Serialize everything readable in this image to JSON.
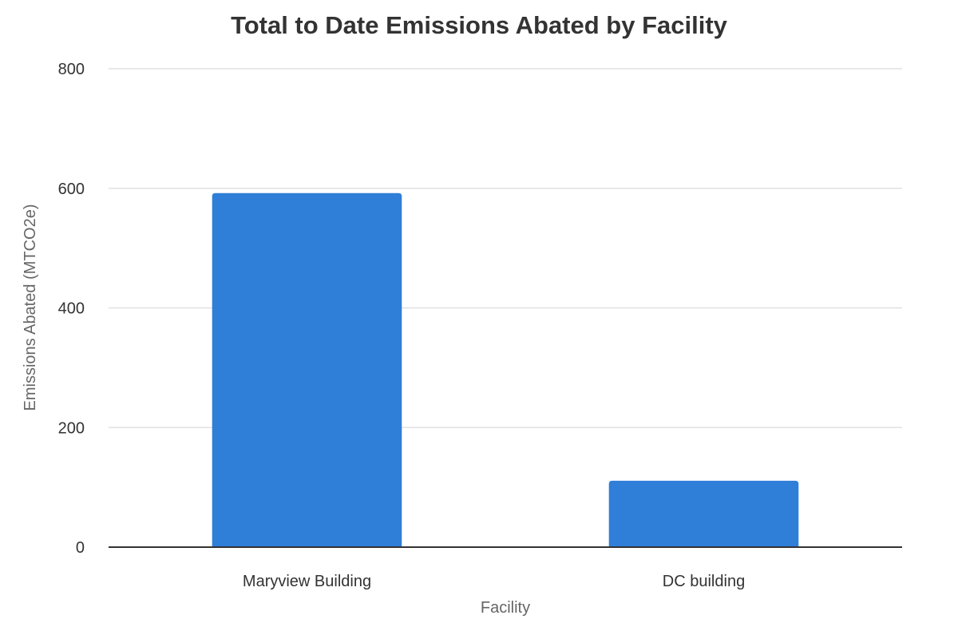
{
  "chart_data": {
    "type": "bar",
    "title": "Total to Date Emissions Abated by Facility",
    "xlabel": "Facility",
    "ylabel": "Emissions Abated (MTCO2e)",
    "categories": [
      "Maryview Building",
      "DC building"
    ],
    "series": [
      {
        "values": [
          592,
          111
        ]
      }
    ],
    "ylim": [
      0,
      800
    ],
    "yticks": [
      0,
      200,
      400,
      600,
      800
    ],
    "grid": true,
    "legend": "none",
    "colors": {
      "bar": "#2f7ed8",
      "grid": "#e0e0e0",
      "baseline": "#333333",
      "title": "#333333",
      "axis_label": "#666666"
    }
  }
}
